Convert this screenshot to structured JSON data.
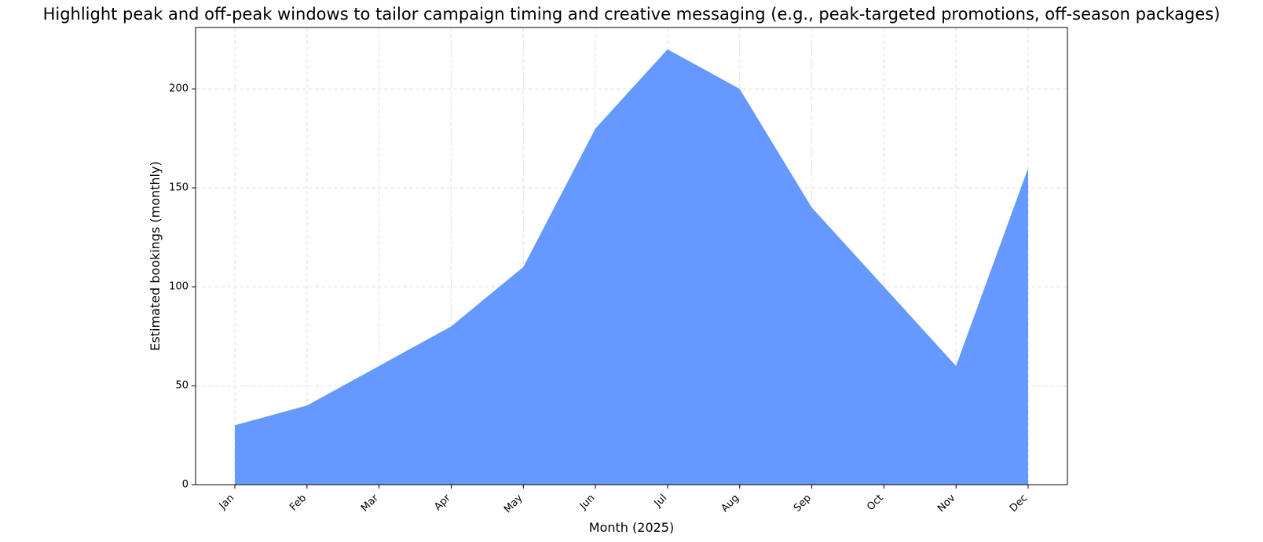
{
  "chart_data": {
    "type": "area",
    "title": "Highlight peak and off-peak windows to tailor campaign timing and creative messaging (e.g., peak-targeted promotions, off-season packages)",
    "xlabel": "Month (2025)",
    "ylabel": "Estimated bookings (monthly)",
    "categories": [
      "Jan",
      "Feb",
      "Mar",
      "Apr",
      "May",
      "Jun",
      "Jul",
      "Aug",
      "Sep",
      "Oct",
      "Nov",
      "Dec"
    ],
    "series": [
      {
        "values": [
          30,
          40,
          60,
          80,
          110,
          180,
          220,
          200,
          140,
          100,
          60,
          160
        ]
      }
    ],
    "ylim": [
      0,
      231
    ],
    "yticks": [
      0,
      50,
      100,
      150,
      200
    ],
    "grid": true,
    "fill_color": "#6699ff",
    "grid_color": "#e0e0e0"
  }
}
